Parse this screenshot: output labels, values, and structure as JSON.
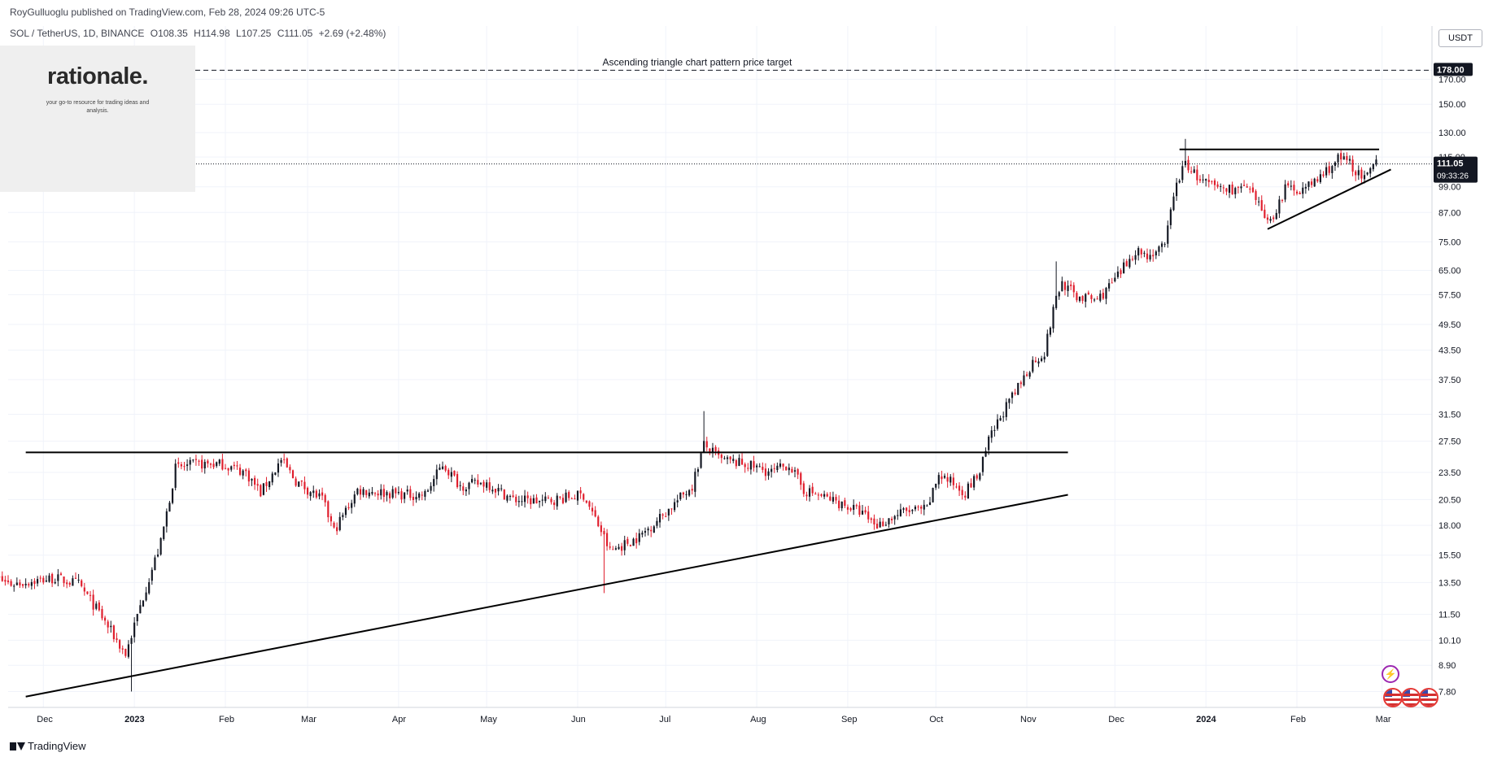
{
  "header": {
    "publisher": "RoyGulluoglu published on TradingView.com, Feb 28, 2024 09:26 UTC-5",
    "symbol": "SOL / TetherUS, 1D, BINANCE",
    "open": "O108.35",
    "high": "H114.98",
    "low": "L107.25",
    "close": "C111.05",
    "change": "+2.69 (+2.48%)"
  },
  "logo": {
    "title": "rationale.",
    "subtitle": "your go-to resource for trading ideas and analysis."
  },
  "currency": "USDT",
  "footer": {
    "brand": "TradingView"
  },
  "colors": {
    "up": "#131722",
    "down": "#e01e2d",
    "line": "#000000",
    "grid": "#f0f3fa",
    "axis_text": "#131722"
  },
  "icons": [
    "flash-icon",
    "us-flag-icon"
  ],
  "chart_data": {
    "type": "candlestick",
    "title": "",
    "scale": "log",
    "ylim": [
      7.2,
      210
    ],
    "x_range": [
      "2022-11-19",
      "2024-03-18"
    ],
    "y_ticks": [
      "178.00",
      "170.00",
      "150.00",
      "130.00",
      "115.00",
      "99.00",
      "87.00",
      "75.00",
      "65.00",
      "57.50",
      "49.50",
      "43.50",
      "37.50",
      "31.50",
      "27.50",
      "23.50",
      "20.50",
      "18.00",
      "15.50",
      "13.50",
      "11.50",
      "10.10",
      "8.90",
      "7.80"
    ],
    "x_ticks": [
      "Dec",
      "2023",
      "Feb",
      "Mar",
      "Apr",
      "May",
      "Jun",
      "Jul",
      "Aug",
      "Sep",
      "Oct",
      "Nov",
      "Dec",
      "2024",
      "Feb",
      "Mar"
    ],
    "x_tick_dates": [
      "2022-12-01",
      "2023-01-01",
      "2023-02-01",
      "2023-03-01",
      "2023-04-01",
      "2023-05-01",
      "2023-06-01",
      "2023-07-01",
      "2023-08-01",
      "2023-09-01",
      "2023-10-01",
      "2023-11-01",
      "2023-12-01",
      "2024-01-01",
      "2024-02-01",
      "2024-03-01"
    ],
    "bold_x_ticks": [
      "2023",
      "2024"
    ],
    "price_label": {
      "value": "111.05",
      "countdown": "09:33:26"
    },
    "target": {
      "value": "178.00",
      "label": "Ascending triangle chart pattern price target"
    },
    "trendlines": [
      {
        "from": [
          "2022-11-25",
          26.0
        ],
        "to": [
          "2023-11-15",
          26.0
        ]
      },
      {
        "from": [
          "2022-11-25",
          7.6
        ],
        "to": [
          "2023-11-15",
          21.0
        ]
      },
      {
        "from": [
          "2023-12-23",
          119.5
        ],
        "to": [
          "2024-02-29",
          119.5
        ]
      },
      {
        "from": [
          "2024-01-22",
          80.0
        ],
        "to": [
          "2024-03-04",
          108.0
        ]
      }
    ],
    "anchors": [
      [
        "2022-11-12",
        14.0
      ],
      [
        "2022-11-20",
        13.4
      ],
      [
        "2022-12-05",
        13.8
      ],
      [
        "2022-12-13",
        13.4
      ],
      [
        "2022-12-20",
        11.6
      ],
      [
        "2022-12-29",
        9.4
      ],
      [
        "2023-01-05",
        13.2
      ],
      [
        "2023-01-10",
        16.5
      ],
      [
        "2023-01-15",
        24.0
      ],
      [
        "2023-01-22",
        24.5
      ],
      [
        "2023-01-31",
        24.5
      ],
      [
        "2023-02-08",
        23.5
      ],
      [
        "2023-02-13",
        21.2
      ],
      [
        "2023-02-20",
        25.0
      ],
      [
        "2023-02-25",
        22.5
      ],
      [
        "2023-03-06",
        20.5
      ],
      [
        "2023-03-10",
        17.5
      ],
      [
        "2023-03-18",
        21.5
      ],
      [
        "2023-03-28",
        21.2
      ],
      [
        "2023-04-04",
        21.0
      ],
      [
        "2023-04-10",
        21.0
      ],
      [
        "2023-04-16",
        24.5
      ],
      [
        "2023-04-22",
        22.0
      ],
      [
        "2023-05-01",
        22.3
      ],
      [
        "2023-05-10",
        20.5
      ],
      [
        "2023-05-20",
        20.3
      ],
      [
        "2023-06-03",
        21.0
      ],
      [
        "2023-06-09",
        17.5
      ],
      [
        "2023-06-12",
        15.8
      ],
      [
        "2023-06-22",
        17.0
      ],
      [
        "2023-07-02",
        19.5
      ],
      [
        "2023-07-10",
        22.0
      ],
      [
        "2023-07-14",
        27.0
      ],
      [
        "2023-07-20",
        25.0
      ],
      [
        "2023-07-28",
        24.5
      ],
      [
        "2023-08-06",
        23.5
      ],
      [
        "2023-08-12",
        24.5
      ],
      [
        "2023-08-17",
        21.5
      ],
      [
        "2023-08-28",
        20.3
      ],
      [
        "2023-09-05",
        19.3
      ],
      [
        "2023-09-11",
        18.0
      ],
      [
        "2023-09-20",
        19.3
      ],
      [
        "2023-09-28",
        19.5
      ],
      [
        "2023-10-02",
        23.3
      ],
      [
        "2023-10-11",
        21.3
      ],
      [
        "2023-10-16",
        23.5
      ],
      [
        "2023-10-19",
        27.5
      ],
      [
        "2023-10-24",
        32.0
      ],
      [
        "2023-10-28",
        35.0
      ],
      [
        "2023-11-03",
        41.0
      ],
      [
        "2023-11-07",
        43.0
      ],
      [
        "2023-11-11",
        57.0
      ],
      [
        "2023-11-13",
        61.0
      ],
      [
        "2023-11-18",
        57.0
      ],
      [
        "2023-11-25",
        56.0
      ],
      [
        "2023-12-02",
        63.0
      ],
      [
        "2023-12-08",
        72.0
      ],
      [
        "2023-12-12",
        70.0
      ],
      [
        "2023-12-18",
        73.0
      ],
      [
        "2023-12-21",
        96.0
      ],
      [
        "2023-12-25",
        112.0
      ],
      [
        "2023-12-30",
        102.0
      ],
      [
        "2024-01-04",
        99.0
      ],
      [
        "2024-01-08",
        98.0
      ],
      [
        "2024-01-15",
        98.0
      ],
      [
        "2024-01-20",
        88.0
      ],
      [
        "2024-01-23",
        83.0
      ],
      [
        "2024-01-28",
        98.0
      ],
      [
        "2024-02-04",
        98.0
      ],
      [
        "2024-02-09",
        104.0
      ],
      [
        "2024-02-15",
        114.0
      ],
      [
        "2024-02-19",
        112.0
      ],
      [
        "2024-02-23",
        103.0
      ],
      [
        "2024-02-25",
        104.0
      ],
      [
        "2024-02-28",
        111.05
      ]
    ]
  }
}
